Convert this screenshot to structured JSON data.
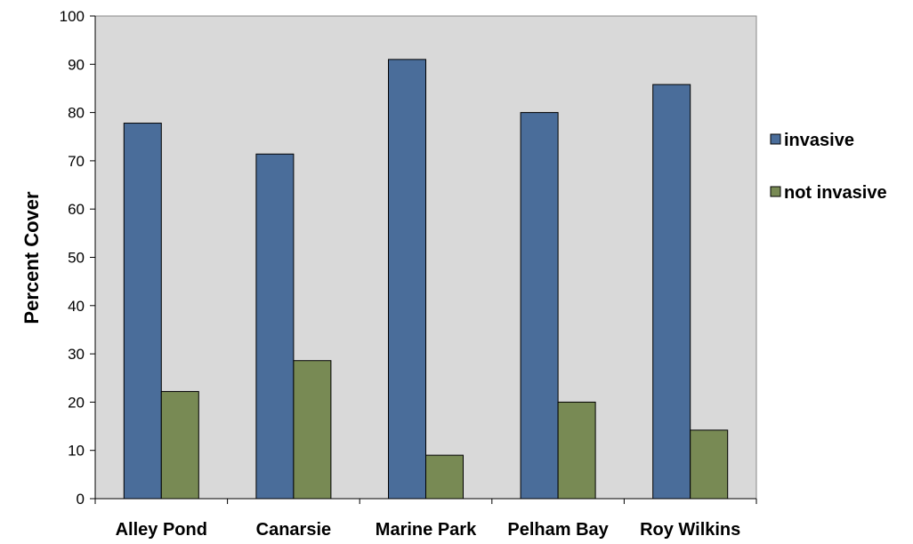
{
  "chart_data": {
    "type": "bar",
    "title": "",
    "xlabel": "",
    "ylabel": "Percent Cover",
    "ylim": [
      0,
      100
    ],
    "yticks": [
      0,
      10,
      20,
      30,
      40,
      50,
      60,
      70,
      80,
      90,
      100
    ],
    "categories": [
      "Alley Pond",
      "Canarsie",
      "Marine Park",
      "Pelham Bay",
      "Roy Wilkins"
    ],
    "series": [
      {
        "name": "invasive",
        "color": "#4a6d9a",
        "values": [
          77.8,
          71.4,
          91.0,
          80.0,
          85.8
        ]
      },
      {
        "name": "not invasive",
        "color": "#788a54",
        "values": [
          22.2,
          28.6,
          9.0,
          20.0,
          14.2
        ]
      }
    ],
    "grid": false,
    "legend": "right",
    "plot_background": "#d9d9d9"
  }
}
